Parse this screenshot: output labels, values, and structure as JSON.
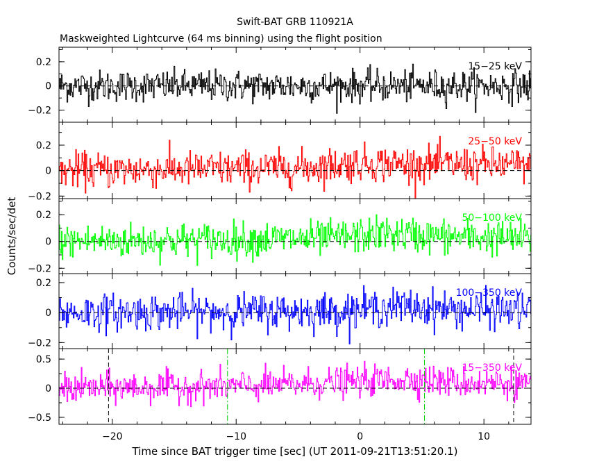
{
  "chart_data": {
    "type": "line",
    "title": "Swift-BAT GRB 110921A",
    "subtitle": "Maskweighted Lightcurve (64 ms binning) using the flight position",
    "xlabel": "Time since BAT trigger time [sec] (UT 2011-09-21T13:51:20.1)",
    "ylabel": "Counts/sec/det",
    "xlim": [
      -24.3,
      13.8
    ],
    "x_ticks": [
      -20,
      -10,
      0,
      10
    ],
    "x_tick_labels": [
      "−20",
      "−10",
      "0",
      "10"
    ],
    "bin_seconds": 0.064,
    "grid": false,
    "panels": [
      {
        "name": "15-25 keV",
        "label": "15−25 keV",
        "color": "#000000",
        "ylim": [
          -0.3,
          0.32
        ],
        "y_ticks": [
          -0.2,
          0,
          0.2
        ],
        "y_tick_labels": [
          "−0.2",
          "0",
          "0.2"
        ],
        "noise_sigma": 0.065,
        "trend": [
          [
            -24.3,
            0.0
          ],
          [
            13.8,
            0.0
          ]
        ]
      },
      {
        "name": "25-50 keV",
        "label": "25−50 keV",
        "color": "#ff0000",
        "ylim": [
          -0.22,
          0.38
        ],
        "y_ticks": [
          -0.2,
          0,
          0.2
        ],
        "y_tick_labels": [
          "−0.2",
          "0",
          "0.2"
        ],
        "noise_sigma": 0.07,
        "trend": [
          [
            -24.3,
            0.0
          ],
          [
            -5,
            0.02
          ],
          [
            0,
            0.06
          ],
          [
            5,
            0.05
          ],
          [
            13.8,
            0.04
          ]
        ]
      },
      {
        "name": "50-100 keV",
        "label": "50−100 keV",
        "color": "#00ff00",
        "ylim": [
          -0.24,
          0.32
        ],
        "y_ticks": [
          -0.2,
          0,
          0.2
        ],
        "y_tick_labels": [
          "−0.2",
          "0",
          "0.2"
        ],
        "noise_sigma": 0.065,
        "trend": [
          [
            -24.3,
            0.0
          ],
          [
            -3,
            0.02
          ],
          [
            2,
            0.06
          ],
          [
            6,
            0.04
          ],
          [
            13.8,
            0.02
          ]
        ]
      },
      {
        "name": "100-350 keV",
        "label": "100−350 keV",
        "color": "#0000ff",
        "ylim": [
          -0.24,
          0.26
        ],
        "y_ticks": [
          -0.2,
          0,
          0.2
        ],
        "y_tick_labels": [
          "−0.2",
          "0",
          "0.2"
        ],
        "noise_sigma": 0.06,
        "trend": [
          [
            -24.3,
            0.0
          ],
          [
            -2,
            0.01
          ],
          [
            3,
            0.04
          ],
          [
            8,
            0.02
          ],
          [
            13.8,
            0.01
          ]
        ]
      },
      {
        "name": "15-350 keV",
        "label": "15−350 keV",
        "color": "#ff00ff",
        "ylim": [
          -0.62,
          0.68
        ],
        "y_ticks": [
          -0.5,
          0,
          0.5
        ],
        "y_tick_labels": [
          "−0.5",
          "0",
          "0.5"
        ],
        "noise_sigma": 0.13,
        "trend": [
          [
            -24.3,
            0.0
          ],
          [
            -8,
            0.04
          ],
          [
            0,
            0.12
          ],
          [
            4,
            0.16
          ],
          [
            8,
            0.1
          ],
          [
            13.8,
            0.08
          ]
        ],
        "vlines": [
          {
            "x": -20.3,
            "style": "black-dashed"
          },
          {
            "x": -10.7,
            "style": "green-dashdot"
          },
          {
            "x": 5.2,
            "style": "green-dashdot"
          },
          {
            "x": 12.4,
            "style": "black-dashed"
          }
        ]
      }
    ]
  }
}
